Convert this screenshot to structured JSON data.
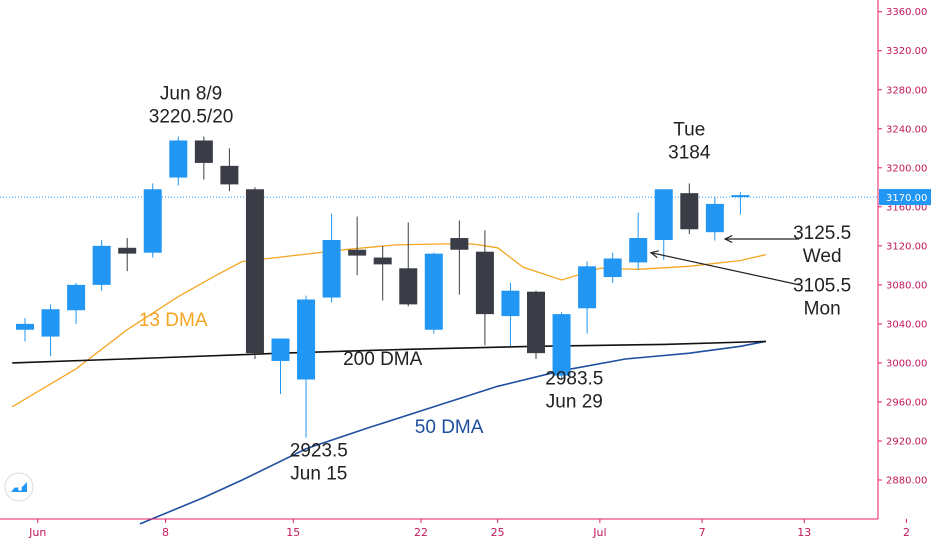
{
  "chart_data": {
    "type": "candlestick",
    "colors": {
      "up": "#2196f3",
      "down": "#3a3d45",
      "ma13": "#f5a623",
      "ma50": "#1e4fa0",
      "ma200": "#111111",
      "axis": "#e91e63",
      "price_line": "#2196f3"
    },
    "y_axis": {
      "ticks": [
        2880,
        2920,
        2960,
        3000,
        3040,
        3080,
        3120,
        3160,
        3200,
        3240,
        3280,
        3320,
        3360
      ],
      "tick_labels": [
        "2880.00",
        "2920.00",
        "2960.00",
        "3000.00",
        "3040.00",
        "3080.00",
        "3120.00",
        "3160.00",
        "3200.00",
        "3240.00",
        "3280.00",
        "3320.00",
        "3360.00"
      ],
      "range": [
        2840,
        3372
      ]
    },
    "x_axis": {
      "ticks": [
        {
          "i": 0.5,
          "label": "Jun"
        },
        {
          "i": 5.5,
          "label": "8"
        },
        {
          "i": 10.5,
          "label": "15"
        },
        {
          "i": 15.5,
          "label": "22"
        },
        {
          "i": 18.5,
          "label": "25"
        },
        {
          "i": 22.5,
          "label": "Jul"
        },
        {
          "i": 26.5,
          "label": "7"
        },
        {
          "i": 30.5,
          "label": "13"
        },
        {
          "i": 34.5,
          "label": "2"
        }
      ]
    },
    "current_price": {
      "value": 3170,
      "label": "3170.00"
    },
    "candles": [
      {
        "i": 0,
        "o": 3034,
        "h": 3046,
        "l": 3022,
        "c": 3040
      },
      {
        "i": 1,
        "o": 3027,
        "h": 3060,
        "l": 3007,
        "c": 3055
      },
      {
        "i": 2,
        "o": 3054,
        "h": 3082,
        "l": 3040,
        "c": 3080
      },
      {
        "i": 3,
        "o": 3080,
        "h": 3126,
        "l": 3074,
        "c": 3120
      },
      {
        "i": 4,
        "o": 3118,
        "h": 3128,
        "l": 3094,
        "c": 3112
      },
      {
        "i": 5,
        "o": 3113,
        "h": 3184,
        "l": 3108,
        "c": 3178
      },
      {
        "i": 6,
        "o": 3190,
        "h": 3232,
        "l": 3182,
        "c": 3228
      },
      {
        "i": 7,
        "o": 3228,
        "h": 3232,
        "l": 3188,
        "c": 3205
      },
      {
        "i": 8,
        "o": 3202,
        "h": 3220,
        "l": 3176,
        "c": 3183
      },
      {
        "i": 9,
        "o": 3178,
        "h": 3180,
        "l": 3004,
        "c": 3010
      },
      {
        "i": 10,
        "o": 3002,
        "h": 3025,
        "l": 2968,
        "c": 3025
      },
      {
        "i": 11,
        "o": 2983,
        "h": 3069,
        "l": 2923.5,
        "c": 3065
      },
      {
        "i": 12,
        "o": 3067,
        "h": 3153,
        "l": 3062,
        "c": 3126
      },
      {
        "i": 13,
        "o": 3116,
        "h": 3150,
        "l": 3090,
        "c": 3110
      },
      {
        "i": 14,
        "o": 3108,
        "h": 3120,
        "l": 3064,
        "c": 3101
      },
      {
        "i": 15,
        "o": 3097,
        "h": 3144,
        "l": 3058,
        "c": 3060
      },
      {
        "i": 16,
        "o": 3034,
        "h": 3113,
        "l": 3030,
        "c": 3112
      },
      {
        "i": 17,
        "o": 3128,
        "h": 3146,
        "l": 3070,
        "c": 3116
      },
      {
        "i": 18,
        "o": 3114,
        "h": 3136,
        "l": 3018,
        "c": 3050
      },
      {
        "i": 19,
        "o": 3048,
        "h": 3082,
        "l": 3017,
        "c": 3074
      },
      {
        "i": 20,
        "o": 3073,
        "h": 3074,
        "l": 3004,
        "c": 3010
      },
      {
        "i": 21,
        "o": 2987,
        "h": 3052,
        "l": 2983.5,
        "c": 3050
      },
      {
        "i": 22,
        "o": 3056,
        "h": 3104,
        "l": 3030,
        "c": 3099
      },
      {
        "i": 23,
        "o": 3088,
        "h": 3113,
        "l": 3082,
        "c": 3107
      },
      {
        "i": 24,
        "o": 3103,
        "h": 3154,
        "l": 3096,
        "c": 3128
      },
      {
        "i": 25,
        "o": 3126,
        "h": 3178,
        "l": 3105.5,
        "c": 3178
      },
      {
        "i": 26,
        "o": 3174,
        "h": 3184,
        "l": 3132,
        "c": 3137
      },
      {
        "i": 27,
        "o": 3134,
        "h": 3170,
        "l": 3125.5,
        "c": 3163
      },
      {
        "i": 28,
        "o": 3172,
        "h": 3175,
        "l": 3152,
        "c": 3172
      }
    ],
    "moving_averages": [
      {
        "name": "13 DMA",
        "color": "#f5a623",
        "points": [
          [
            -0.5,
            2955
          ],
          [
            2,
            2994
          ],
          [
            4,
            3034
          ],
          [
            6,
            3068
          ],
          [
            7.5,
            3090
          ],
          [
            8.5,
            3104
          ],
          [
            10.5,
            3110
          ],
          [
            12.5,
            3116
          ],
          [
            14.5,
            3121
          ],
          [
            16.5,
            3122
          ],
          [
            17.5,
            3122
          ],
          [
            18.5,
            3118
          ],
          [
            19.5,
            3098
          ],
          [
            21,
            3085
          ],
          [
            22.5,
            3097
          ],
          [
            24,
            3096
          ],
          [
            26,
            3099
          ],
          [
            28,
            3105
          ],
          [
            29,
            3111
          ]
        ]
      },
      {
        "name": "50 DMA",
        "color": "#1e4fa0",
        "points": [
          [
            4.5,
            2835
          ],
          [
            7,
            2862
          ],
          [
            8.5,
            2880
          ],
          [
            11,
            2912
          ],
          [
            13.5,
            2934
          ],
          [
            16,
            2955
          ],
          [
            18.5,
            2976
          ],
          [
            21,
            2992
          ],
          [
            23.5,
            3004
          ],
          [
            26,
            3010
          ],
          [
            28,
            3017
          ],
          [
            29,
            3022
          ]
        ]
      },
      {
        "name": "200 DMA",
        "color": "#111111",
        "points": [
          [
            -0.5,
            3000
          ],
          [
            5,
            3005
          ],
          [
            10,
            3010
          ],
          [
            15,
            3014
          ],
          [
            20,
            3017
          ],
          [
            25,
            3019
          ],
          [
            29,
            3022
          ]
        ]
      }
    ],
    "annotations": [
      {
        "lines": [
          "Jun 8/9",
          "3220.5/20"
        ],
        "i": 6.5,
        "y": 3270,
        "color": "#222222"
      },
      {
        "lines": [
          "Tue",
          "3184"
        ],
        "i": 26,
        "y": 3233,
        "color": "#222222"
      },
      {
        "lines": [
          "3125.5",
          "Wed"
        ],
        "i": 31.2,
        "y": 3127,
        "color": "#222222"
      },
      {
        "lines": [
          "3105.5",
          "Mon"
        ],
        "i": 31.2,
        "y": 3073,
        "color": "#222222"
      },
      {
        "lines": [
          "2983.5",
          "Jun 29"
        ],
        "i": 21.5,
        "y": 2978,
        "color": "#222222"
      },
      {
        "lines": [
          "2923.5",
          "Jun 15"
        ],
        "i": 11.5,
        "y": 2904,
        "color": "#222222"
      },
      {
        "lines": [
          "13 DMA"
        ],
        "i": 5.8,
        "y": 3038,
        "color": "#f5a623"
      },
      {
        "lines": [
          "50 DMA"
        ],
        "i": 16.6,
        "y": 2928,
        "color": "#1e4fa0"
      },
      {
        "lines": [
          "200 DMA"
        ],
        "i": 14.0,
        "y": 2998,
        "color": "#222222"
      }
    ],
    "arrows": [
      {
        "from": {
          "i": 30.3,
          "y": 3127
        },
        "to": {
          "i": 27.4,
          "y": 3127
        }
      },
      {
        "from": {
          "i": 30.3,
          "y": 3080
        },
        "to": {
          "i": 24.5,
          "y": 3113
        }
      }
    ]
  }
}
